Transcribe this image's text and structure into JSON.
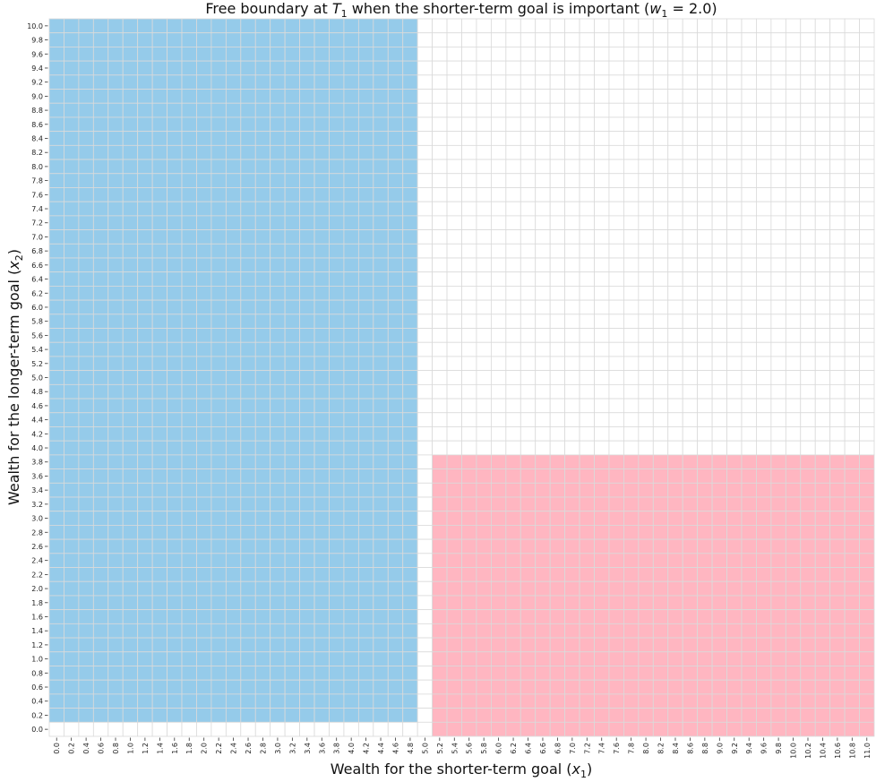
{
  "chart_data": {
    "type": "heatmap",
    "title": {
      "prefix": "Free boundary at ",
      "var1": "T",
      "sub1": "1",
      "middle": " when the shorter-term goal is important (",
      "var2": "w",
      "sub2": "1",
      "suffix": " = 2.0)"
    },
    "xlabel": {
      "text": "Wealth for the shorter-term goal (",
      "var": "x",
      "sub": "1",
      "close": ")"
    },
    "ylabel": {
      "text": "Wealth for the longer-term goal (",
      "var": "x",
      "sub": "2",
      "close": ")"
    },
    "x_categories": [
      "0.0",
      "0.2",
      "0.4",
      "0.6",
      "0.8",
      "1.0",
      "1.2",
      "1.4",
      "1.6",
      "1.8",
      "2.0",
      "2.2",
      "2.4",
      "2.6",
      "2.8",
      "3.0",
      "3.2",
      "3.4",
      "3.6",
      "3.8",
      "4.0",
      "4.2",
      "4.4",
      "4.6",
      "4.8",
      "5.0",
      "5.2",
      "5.4",
      "5.6",
      "5.8",
      "6.0",
      "6.2",
      "6.4",
      "6.6",
      "6.8",
      "7.0",
      "7.2",
      "7.4",
      "7.6",
      "7.8",
      "8.0",
      "8.2",
      "8.4",
      "8.6",
      "8.8",
      "9.0",
      "9.2",
      "9.4",
      "9.6",
      "9.8",
      "10.0",
      "10.2",
      "10.4",
      "10.6",
      "10.8",
      "11.0"
    ],
    "y_categories_top_to_bottom": [
      "10.0",
      "9.8",
      "9.6",
      "9.4",
      "9.2",
      "9.0",
      "8.8",
      "8.6",
      "8.4",
      "8.2",
      "8.0",
      "7.8",
      "7.6",
      "7.4",
      "7.2",
      "7.0",
      "6.8",
      "6.6",
      "6.4",
      "6.2",
      "6.0",
      "5.8",
      "5.6",
      "5.4",
      "5.2",
      "5.0",
      "4.8",
      "4.6",
      "4.4",
      "4.2",
      "4.0",
      "3.8",
      "3.6",
      "3.4",
      "3.2",
      "3.0",
      "2.8",
      "2.6",
      "2.4",
      "2.2",
      "2.0",
      "1.8",
      "1.6",
      "1.4",
      "1.2",
      "1.0",
      "0.8",
      "0.6",
      "0.4",
      "0.2",
      "0.0"
    ],
    "cell_colors": {
      "0": "#ffffff",
      "1": "#95cbea",
      "2": "#ffb6c1"
    },
    "grid_color": "#dadada",
    "z_rows_top_to_bottom": [
      "11111111111111111111111110000000000000000000000000000000",
      "11111111111111111111111110000000000000000000000000000000",
      "11111111111111111111111110000000000000000000000000000000",
      "11111111111111111111111110000000000000000000000000000000",
      "11111111111111111111111110000000000000000000000000000000",
      "11111111111111111111111110000000000000000000000000000000",
      "11111111111111111111111110000000000000000000000000000000",
      "11111111111111111111111110000000000000000000000000000000",
      "11111111111111111111111110000000000000000000000000000000",
      "11111111111111111111111110000000000000000000000000000000",
      "11111111111111111111111110000000000000000000000000000000",
      "11111111111111111111111110000000000000000000000000000000",
      "11111111111111111111111110000000000000000000000000000000",
      "11111111111111111111111110000000000000000000000000000000",
      "11111111111111111111111110000000000000000000000000000000",
      "11111111111111111111111110000000000000000000000000000000",
      "11111111111111111111111110000000000000000000000000000000",
      "11111111111111111111111110000000000000000000000000000000",
      "11111111111111111111111110000000000000000000000000000000",
      "11111111111111111111111110000000000000000000000000000000",
      "11111111111111111111111110000000000000000000000000000000",
      "11111111111111111111111110000000000000000000000000000000",
      "11111111111111111111111110000000000000000000000000000000",
      "11111111111111111111111110000000000000000000000000000000",
      "11111111111111111111111110000000000000000000000000000000",
      "11111111111111111111111110000000000000000000000000000000",
      "11111111111111111111111110000000000000000000000000000000",
      "11111111111111111111111110000000000000000000000000000000",
      "11111111111111111111111110000000000000000000000000000000",
      "11111111111111111111111110000000000000000000000000000000",
      "11111111111111111111111110000000000000000000000000000000",
      "11111111111111111111111110222222222222222222222222222222",
      "11111111111111111111111110222222222222222222222222222222",
      "11111111111111111111111110222222222222222222222222222222",
      "11111111111111111111111110222222222222222222222222222222",
      "11111111111111111111111110222222222222222222222222222222",
      "11111111111111111111111110222222222222222222222222222222",
      "11111111111111111111111110222222222222222222222222222222",
      "11111111111111111111111110222222222222222222222222222222",
      "11111111111111111111111110222222222222222222222222222222",
      "11111111111111111111111110222222222222222222222222222222",
      "11111111111111111111111110222222222222222222222222222222",
      "11111111111111111111111110222222222222222222222222222222",
      "11111111111111111111111110222222222222222222222222222222",
      "11111111111111111111111110222222222222222222222222222222",
      "11111111111111111111111110222222222222222222222222222222",
      "11111111111111111111111110222222222222222222222222222222",
      "11111111111111111111111110222222222222222222222222222222",
      "11111111111111111111111110222222222222222222222222222222",
      "11111111111111111111111110222222222222222222222222222222",
      "00000000000000000000000000222222222222222222222222222222"
    ],
    "grid": true,
    "legend": "none"
  }
}
